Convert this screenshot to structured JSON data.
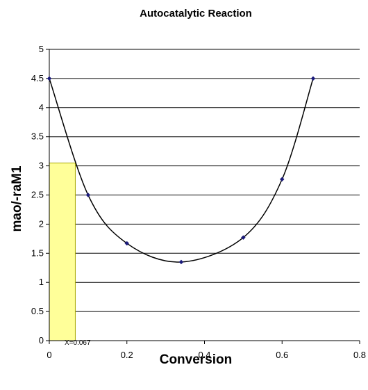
{
  "chart_data": {
    "type": "scatter",
    "title": "Autocatalytic Reaction",
    "xlabel": "Conversion",
    "ylabel": "mao/-raM1",
    "xlim": [
      0,
      0.8
    ],
    "ylim": [
      0,
      5
    ],
    "x_ticks": [
      "0",
      "0.2",
      "0.4",
      "0.6",
      "0.8"
    ],
    "y_ticks": [
      "0",
      "0.5",
      "1",
      "1.5",
      "2",
      "2.5",
      "3",
      "3.5",
      "4",
      "4.5",
      "5"
    ],
    "grid": "horizontal",
    "legend": "none",
    "series": [
      {
        "x": [
          0,
          0.1,
          0.2,
          0.34,
          0.5,
          0.6,
          0.68
        ],
        "y": [
          4.5,
          2.5,
          1.67,
          1.35,
          1.77,
          2.77,
          4.5
        ],
        "marker_color": "#1a1a7a",
        "line_color": "#000000"
      }
    ],
    "highlight_region": {
      "x": [
        0,
        0.067
      ],
      "y": [
        0,
        3.05
      ],
      "fill": "#ffff99",
      "stroke": "#a8a800"
    },
    "annotation": "X=0.067"
  }
}
